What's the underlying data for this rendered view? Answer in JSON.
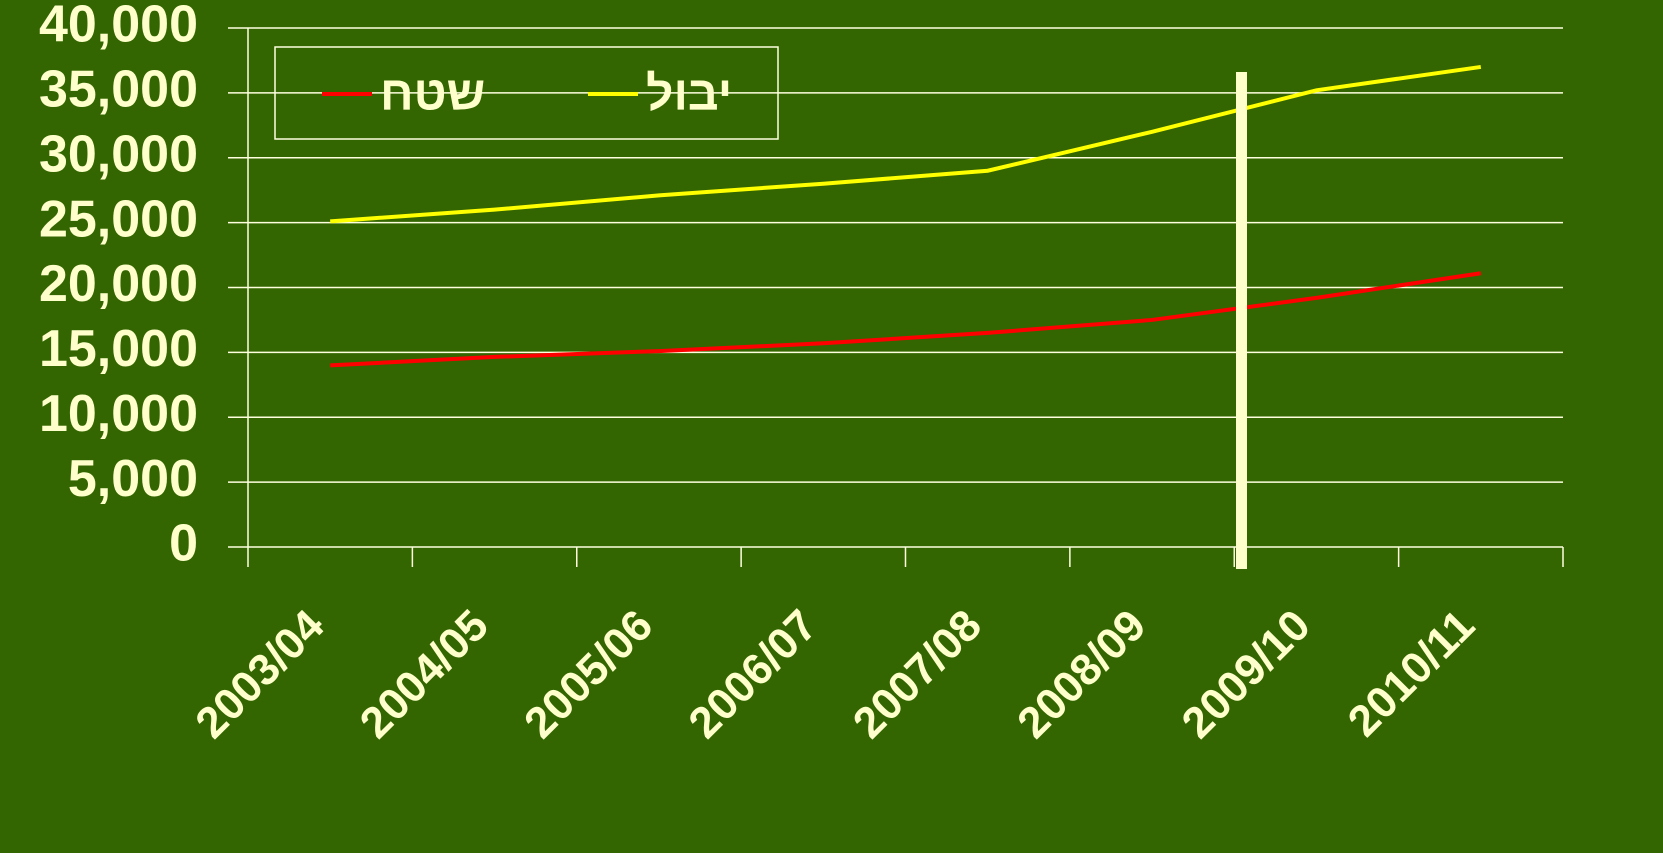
{
  "chart_data": {
    "type": "line",
    "categories": [
      "2003/04",
      "2004/05",
      "2005/06",
      "2006/07",
      "2007/08",
      "2008/09",
      "2009/10",
      "2010/11"
    ],
    "series": [
      {
        "name": "שטח",
        "color": "#ff0000",
        "values": [
          14000,
          14650,
          15100,
          15700,
          16500,
          17500,
          19200,
          21100
        ]
      },
      {
        "name": "יבול",
        "color": "#ffff00",
        "values": [
          25100,
          26000,
          27100,
          28000,
          29000,
          32000,
          35200,
          37000
        ]
      }
    ],
    "ylim": [
      0,
      40000
    ],
    "yticks": [
      0,
      {
        "value": 5000,
        "label": "5,000"
      },
      {
        "value": 10000,
        "label": "10,000"
      },
      {
        "value": 15000,
        "label": "15,000"
      },
      {
        "value": 20000,
        "label": "20,000"
      },
      {
        "value": 25000,
        "label": "25,000"
      },
      {
        "value": 30000,
        "label": "30,000"
      },
      {
        "value": 35000,
        "label": "35,000"
      },
      {
        "value": 40000,
        "label": "40,000"
      }
    ],
    "grid": true,
    "legend": "top-left"
  }
}
